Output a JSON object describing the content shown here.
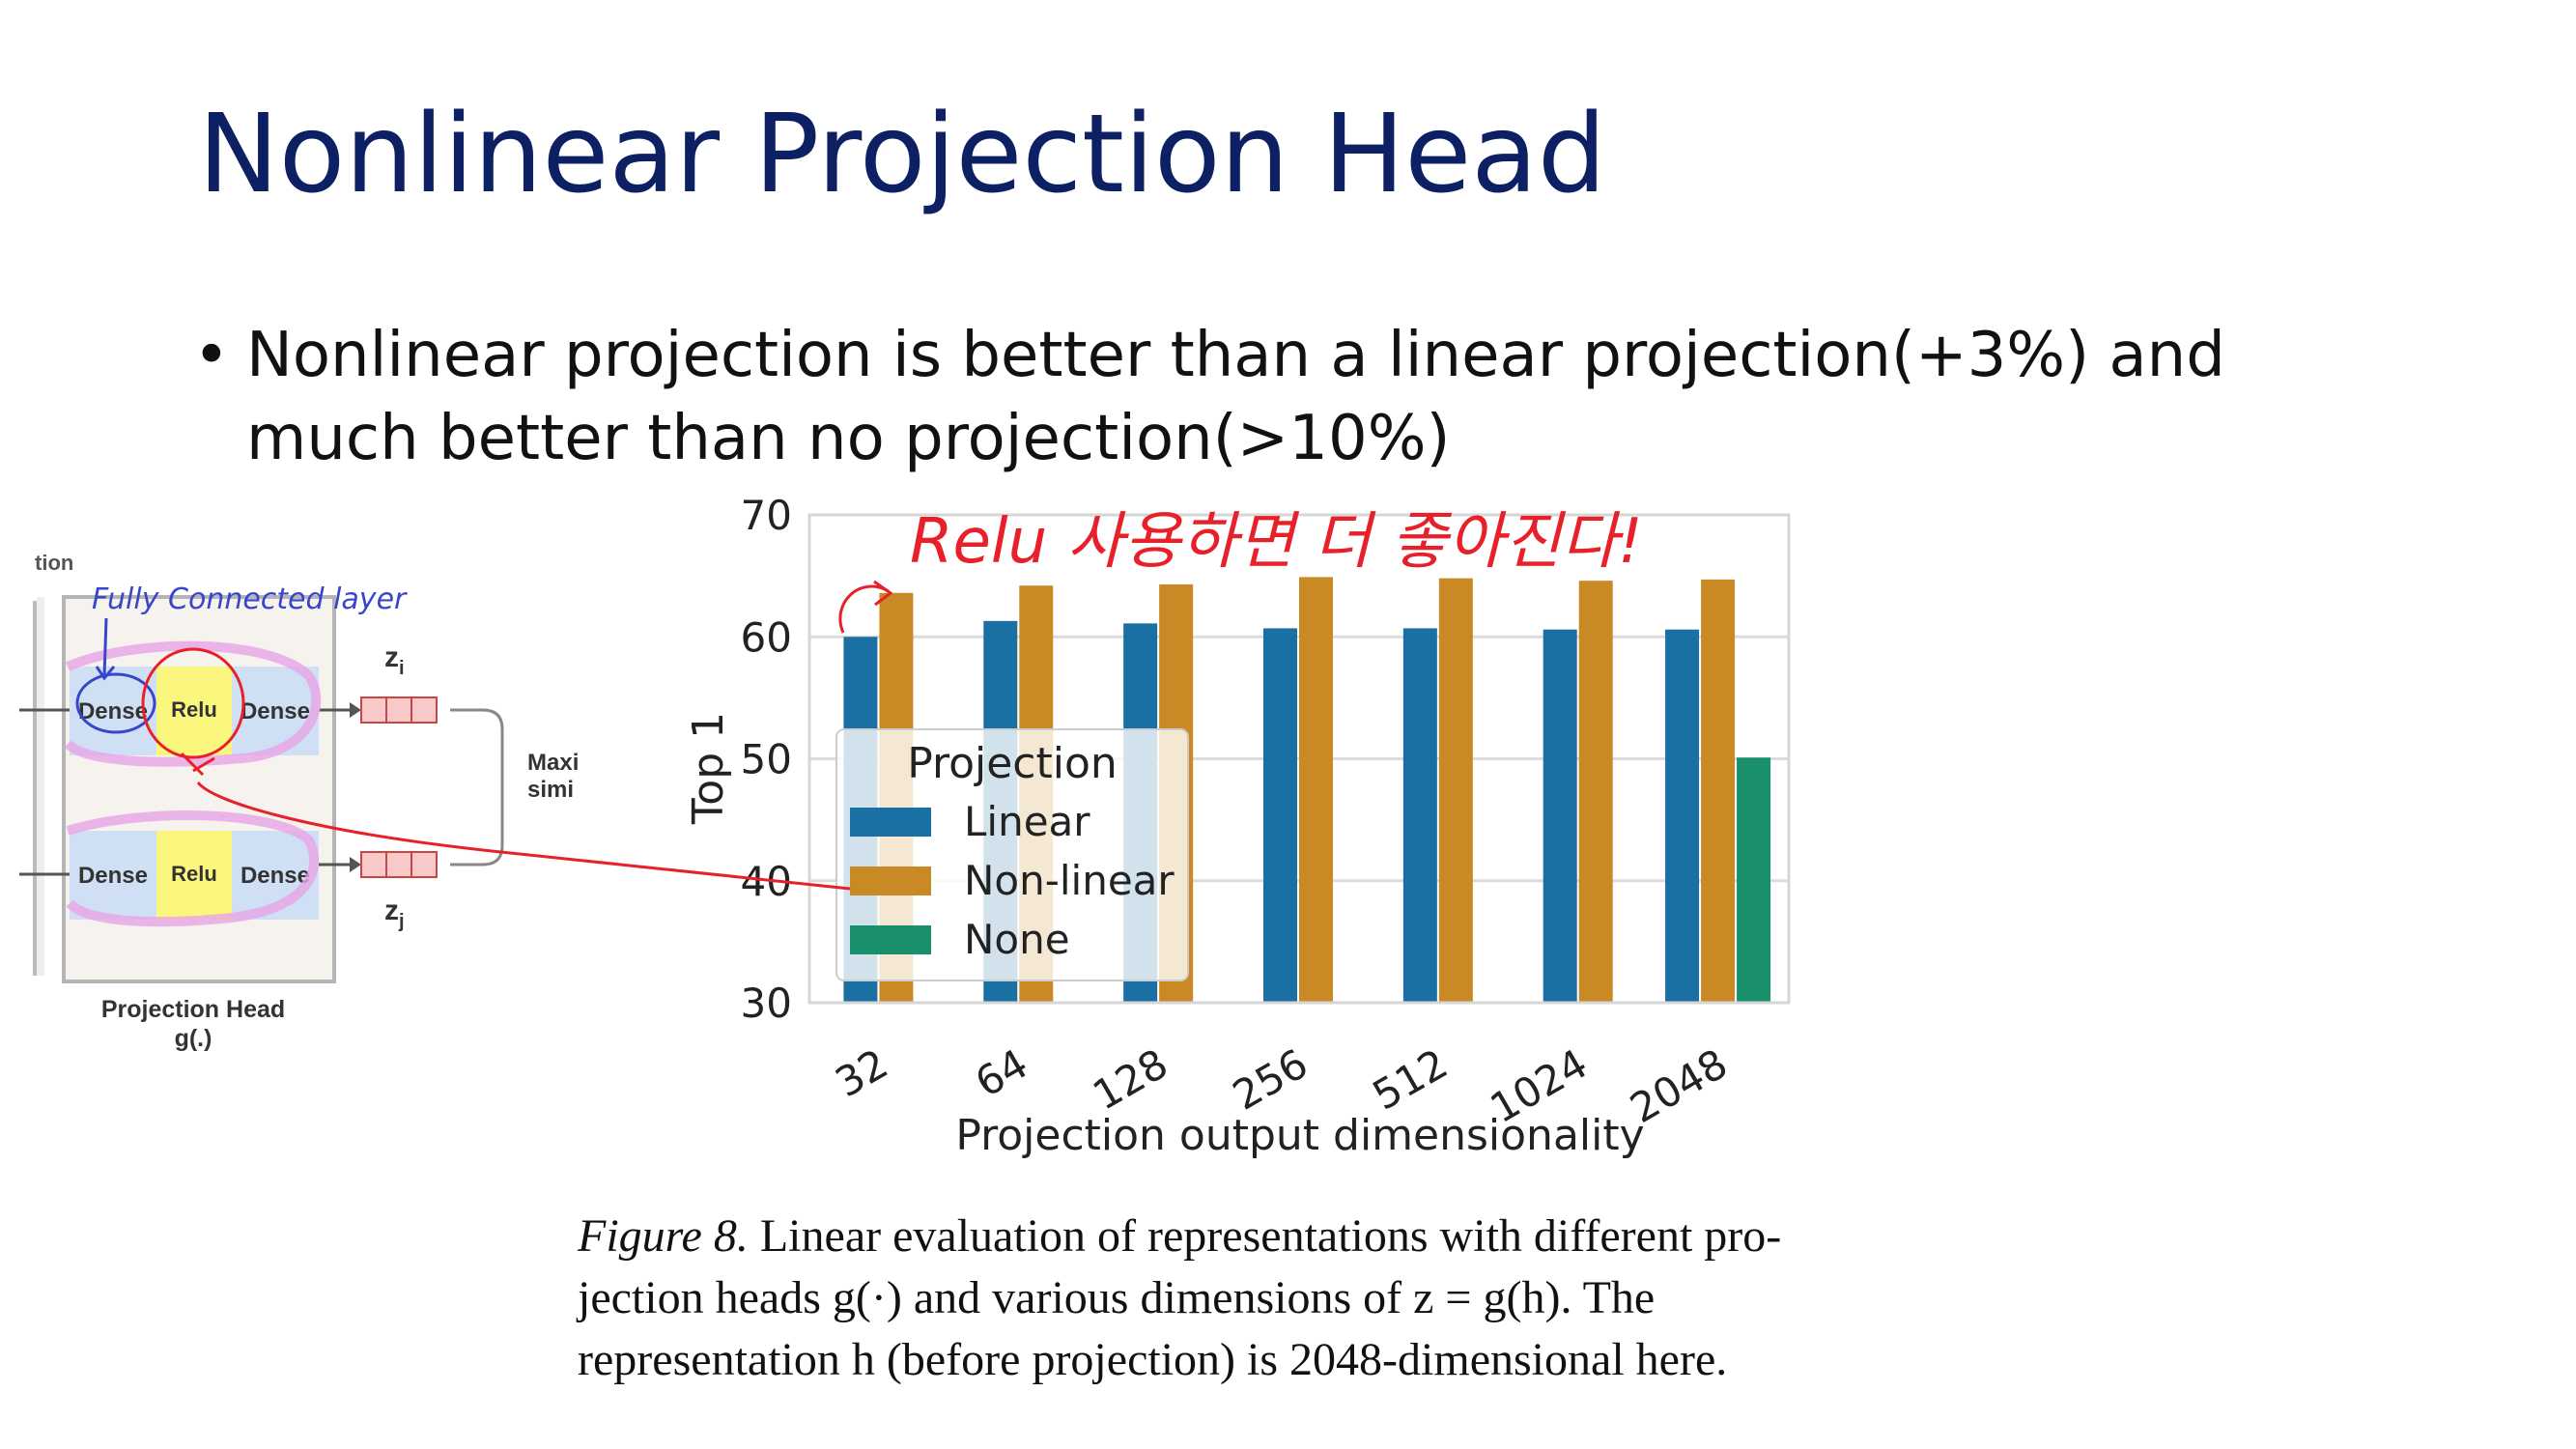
{
  "slide": {
    "title": "Nonlinear Projection Head",
    "bullet_line1": "Nonlinear projection is better than a linear projection(+3%) and",
    "bullet_line2": "much better than no projection(>10%)"
  },
  "diagram": {
    "dense_label": "Dense",
    "relu_label": "Relu",
    "zi": "z",
    "zi_sub": "i",
    "zj": "z",
    "zj_sub": "j",
    "maxi_line1": "Maxi",
    "maxi_line2": "simi",
    "caption_line1": "Projection Head",
    "caption_line2": "g(.)",
    "top_cut_text": "tion",
    "annotation": "Fully Connected layer"
  },
  "annotation": {
    "chart_note": "Relu 사용하면 더 좋아진다!"
  },
  "colors": {
    "title": "#0c2063",
    "linear": "#1a6fa3",
    "nonlinear": "#c98a26",
    "none": "#1a8f6c",
    "dense_fill": "#cfe0f5",
    "relu_fill": "#fbf77e",
    "pen_red": "#e8202a",
    "pen_blue": "#3a46c9",
    "highlighter": "#e8a4e6"
  },
  "chart_data": {
    "type": "bar",
    "categories": [
      "32",
      "64",
      "128",
      "256",
      "512",
      "1024",
      "2048"
    ],
    "series": [
      {
        "name": "Linear",
        "values": [
          60,
          61.3,
          61.1,
          60.7,
          60.7,
          60.6,
          60.6
        ]
      },
      {
        "name": "Non-linear",
        "values": [
          63.6,
          64.2,
          64.3,
          64.9,
          64.8,
          64.6,
          64.7
        ]
      },
      {
        "name": "None",
        "values": [
          null,
          null,
          null,
          null,
          null,
          null,
          50.1
        ]
      }
    ],
    "ylim": [
      30,
      70
    ],
    "yticks": [
      30,
      40,
      50,
      60,
      70
    ],
    "xlabel": "Projection output dimensionality",
    "ylabel": "Top 1",
    "legend_title": "Projection",
    "legend_position": "center-left",
    "grid": true
  },
  "caption": {
    "fig_label": "Figure 8.",
    "line1_rest": " Linear evaluation of representations with different pro-",
    "line2": "jection heads g(·) and various dimensions of z = g(h).  The",
    "line3": "representation h (before projection) is 2048-dimensional here."
  }
}
